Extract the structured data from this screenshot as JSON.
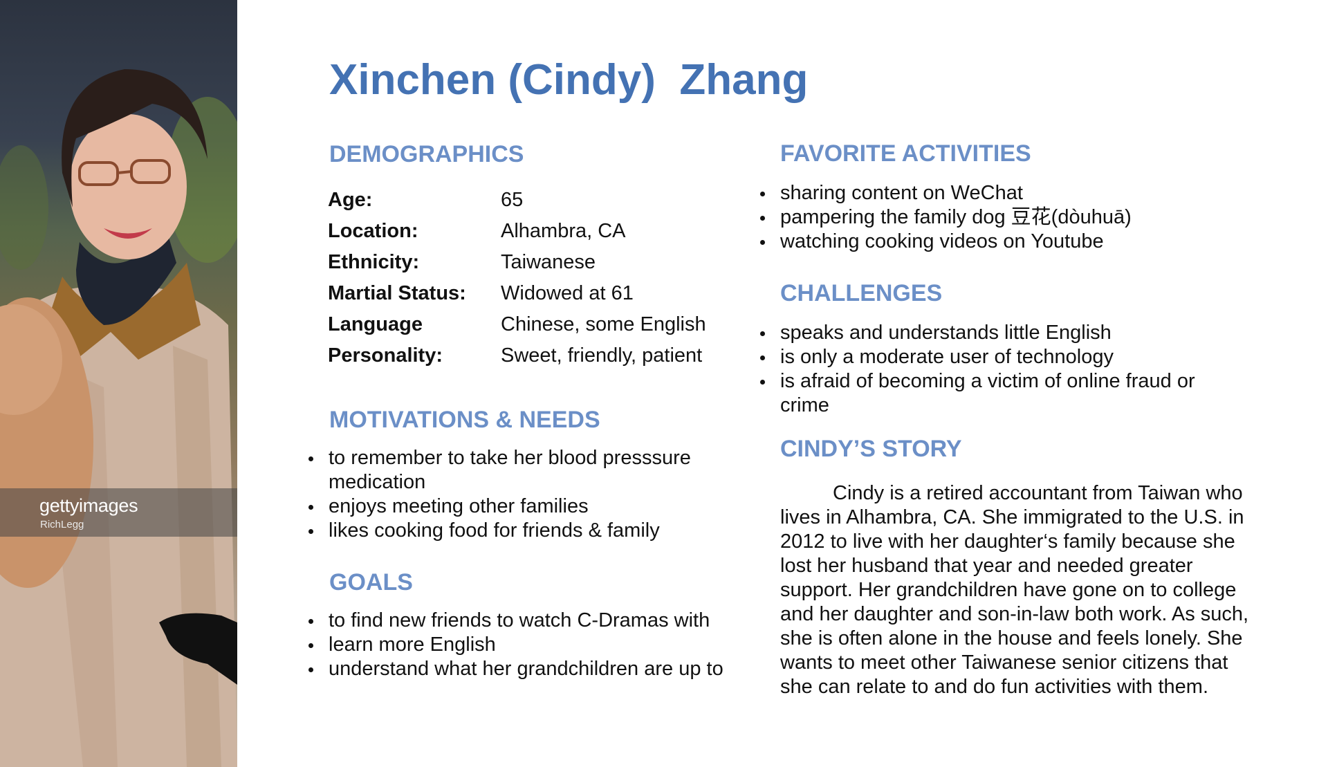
{
  "photo": {
    "watermark_brand": "gettyimages",
    "watermark_credit": "RichLegg"
  },
  "title": "Xinchen (Cindy)  Zhang",
  "demographics": {
    "heading": "DEMOGRAPHICS",
    "rows": [
      {
        "label": "Age:",
        "value": "65"
      },
      {
        "label": "Location:",
        "value": "Alhambra, CA"
      },
      {
        "label": "Ethnicity:",
        "value": "Taiwanese"
      },
      {
        "label": "Martial Status:",
        "value": "Widowed at 61"
      },
      {
        "label": "Language",
        "value": "Chinese, some English"
      },
      {
        "label": "Personality:",
        "value": "Sweet, friendly, patient"
      }
    ]
  },
  "motivations": {
    "heading": "MOTIVATIONS & NEEDS",
    "items": [
      "to remember to take her blood presssure medication",
      "enjoys meeting other families",
      "likes cooking food for friends & family"
    ]
  },
  "goals": {
    "heading": "GOALS",
    "items": [
      "to find new friends to watch C-Dramas with",
      "learn more English",
      "understand what her grandchildren are up to"
    ]
  },
  "activities": {
    "heading": "FAVORITE ACTIVITIES",
    "items": [
      "sharing content on WeChat",
      "pampering the family dog 豆花(dòuhuā)",
      "watching cooking videos on Youtube"
    ]
  },
  "challenges": {
    "heading": "CHALLENGES",
    "items": [
      "speaks and understands little English",
      "is only a moderate user of technology",
      "is afraid of becoming a victim of online fraud or crime"
    ]
  },
  "story": {
    "heading": "CINDY’S STORY",
    "text": "Cindy is a retired accountant from Taiwan who lives in Alhambra, CA. She immigrated to the U.S. in 2012 to live with her daughter‘s family because she lost her husband that year and needed greater support. Her grandchildren have gone on to college and her daughter and son-in-law both work. As such, she is often alone in the house and feels lonely. She wants to meet other Taiwanese senior citizens that she can relate to and do fun activities with them."
  }
}
